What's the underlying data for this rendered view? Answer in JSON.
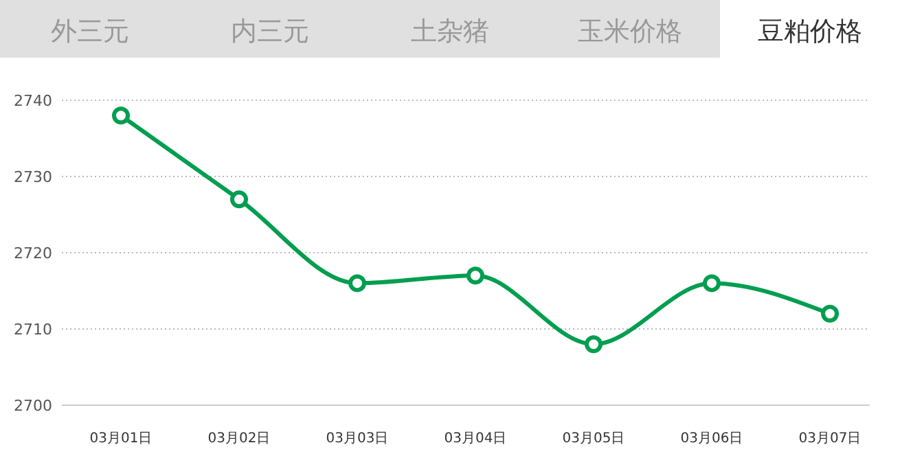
{
  "chart_data": {
    "type": "line",
    "title": "豆粕价格",
    "annotations": [
      "外三元",
      "内三元",
      "土杂猪",
      "玉米价格"
    ],
    "categories": [
      "03月01日",
      "03月02日",
      "03月03日",
      "03月04日",
      "03月05日",
      "03月06日",
      "03月07日"
    ],
    "series": [
      {
        "color": "#009e4f",
        "values": [
          2738,
          2727,
          2716,
          2717,
          2708,
          2716,
          2712
        ]
      }
    ],
    "ylim": [
      2700,
      2740
    ],
    "yticks": [
      2700,
      2710,
      2720,
      2730,
      2740
    ],
    "grid": "y",
    "marker": "circle",
    "line_style": "solid"
  }
}
